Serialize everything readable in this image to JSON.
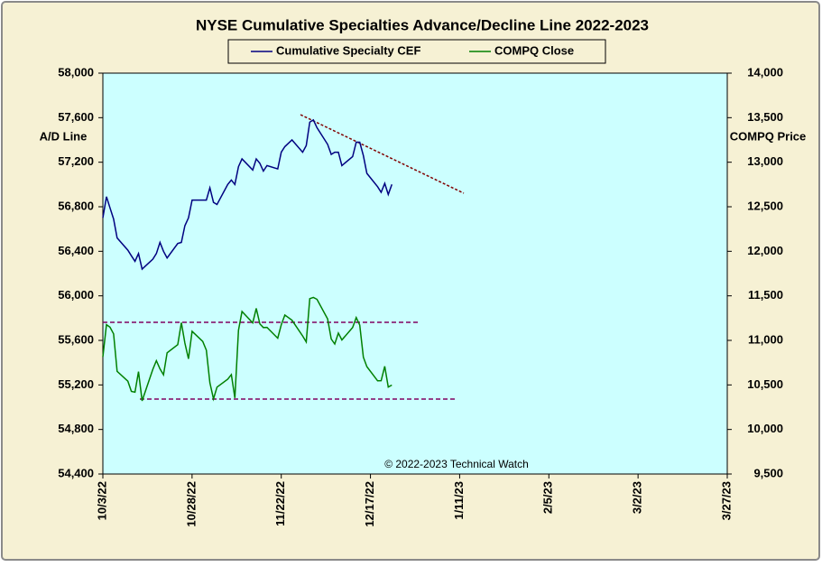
{
  "chart_data": {
    "type": "line",
    "title": "NYSE Cumulative  Specialties  Advance/Decline  Line  2022-2023",
    "ylabel": "A/D Line",
    "y2label": "COMPQ Price",
    "annotation": "© 2022-2023  Technical Watch",
    "legend": "top",
    "x": [
      "10/3/22",
      "10/4/22",
      "10/5/22",
      "10/6/22",
      "10/7/22",
      "10/10/22",
      "10/11/22",
      "10/12/22",
      "10/13/22",
      "10/14/22",
      "10/17/22",
      "10/18/22",
      "10/19/22",
      "10/20/22",
      "10/21/22",
      "10/24/22",
      "10/25/22",
      "10/26/22",
      "10/27/22",
      "10/28/22",
      "10/31/22",
      "11/1/22",
      "11/2/22",
      "11/3/22",
      "11/4/22",
      "11/7/22",
      "11/8/22",
      "11/9/22",
      "11/10/22",
      "11/11/22",
      "11/14/22",
      "11/15/22",
      "11/16/22",
      "11/17/22",
      "11/18/22",
      "11/21/22",
      "11/22/22",
      "11/23/22",
      "11/25/22",
      "11/28/22",
      "11/29/22",
      "11/30/22",
      "12/1/22",
      "12/2/22",
      "12/5/22",
      "12/6/22",
      "12/7/22",
      "12/8/22",
      "12/9/22",
      "12/12/22",
      "12/13/22",
      "12/14/22",
      "12/15/22",
      "12/16/22",
      "12/19/22",
      "12/20/22",
      "12/21/22",
      "12/22/22",
      "12/23/22"
    ],
    "series": [
      {
        "name": "Cumulative Specialty CEF",
        "color": "#000080",
        "axis": "y",
        "values": [
          56700,
          56890,
          56790,
          56690,
          56520,
          56410,
          56360,
          56310,
          56380,
          56240,
          56330,
          56380,
          56480,
          56400,
          56340,
          56470,
          56480,
          56630,
          56700,
          56860,
          56860,
          56860,
          56970,
          56840,
          56820,
          57000,
          57040,
          57000,
          57160,
          57230,
          57130,
          57230,
          57190,
          57120,
          57170,
          57140,
          57290,
          57340,
          57400,
          57290,
          57350,
          57560,
          57580,
          57510,
          57360,
          57270,
          57290,
          57290,
          57170,
          57250,
          57380,
          57380,
          57260,
          57100,
          56980,
          56930,
          57010,
          56910,
          57000
        ]
      },
      {
        "name": "COMPQ Close",
        "color": "#008000",
        "axis": "y2",
        "values": [
          10815,
          11176,
          11148,
          11073,
          10652,
          10542,
          10427,
          10418,
          10649,
          10321,
          10676,
          10772,
          10681,
          10614,
          10860,
          10952,
          11199,
          10970,
          10793,
          11102,
          10988,
          10890,
          10525,
          10343,
          10475,
          10564,
          10616,
          10353,
          11114,
          11324,
          11197,
          11359,
          11184,
          11144,
          11146,
          11024,
          11174,
          11285,
          11226,
          11050,
          10983,
          11468,
          11482,
          11461,
          11240,
          11015,
          10959,
          11082,
          11005,
          11144,
          11256,
          11171,
          10811,
          10705,
          10546,
          10547,
          10709,
          10476,
          10498
        ]
      }
    ],
    "xlim": [
      "10/3/22",
      "3/27/23"
    ],
    "xticks": [
      "10/3/22",
      "10/28/22",
      "11/22/22",
      "12/17/22",
      "1/11/23",
      "2/5/23",
      "3/2/23",
      "3/27/23"
    ],
    "ylim": [
      54400,
      58000
    ],
    "yticks": [
      {
        "value": 54400,
        "label": "54,400"
      },
      {
        "value": 54800,
        "label": "54,800"
      },
      {
        "value": 55200,
        "label": "55,200"
      },
      {
        "value": 55600,
        "label": "55,600"
      },
      {
        "value": 56000,
        "label": "56,000"
      },
      {
        "value": 56400,
        "label": "56,400"
      },
      {
        "value": 56800,
        "label": "56,800"
      },
      {
        "value": 57200,
        "label": "57,200"
      },
      {
        "value": 57600,
        "label": "57,600"
      },
      {
        "value": 58000,
        "label": "58,000"
      }
    ],
    "y2lim": [
      9500,
      14000
    ],
    "y2ticks": [
      {
        "value": 9500,
        "label": "9,500"
      },
      {
        "value": 10000,
        "label": "10,000"
      },
      {
        "value": 10500,
        "label": "10,500"
      },
      {
        "value": 11000,
        "label": "11,000"
      },
      {
        "value": 11500,
        "label": "11,500"
      },
      {
        "value": 12000,
        "label": "12,000"
      },
      {
        "value": 12500,
        "label": "12,500"
      },
      {
        "value": 13000,
        "label": "13,000"
      },
      {
        "value": 13500,
        "label": "13,500"
      },
      {
        "value": 14000,
        "label": "14,000"
      }
    ]
  }
}
